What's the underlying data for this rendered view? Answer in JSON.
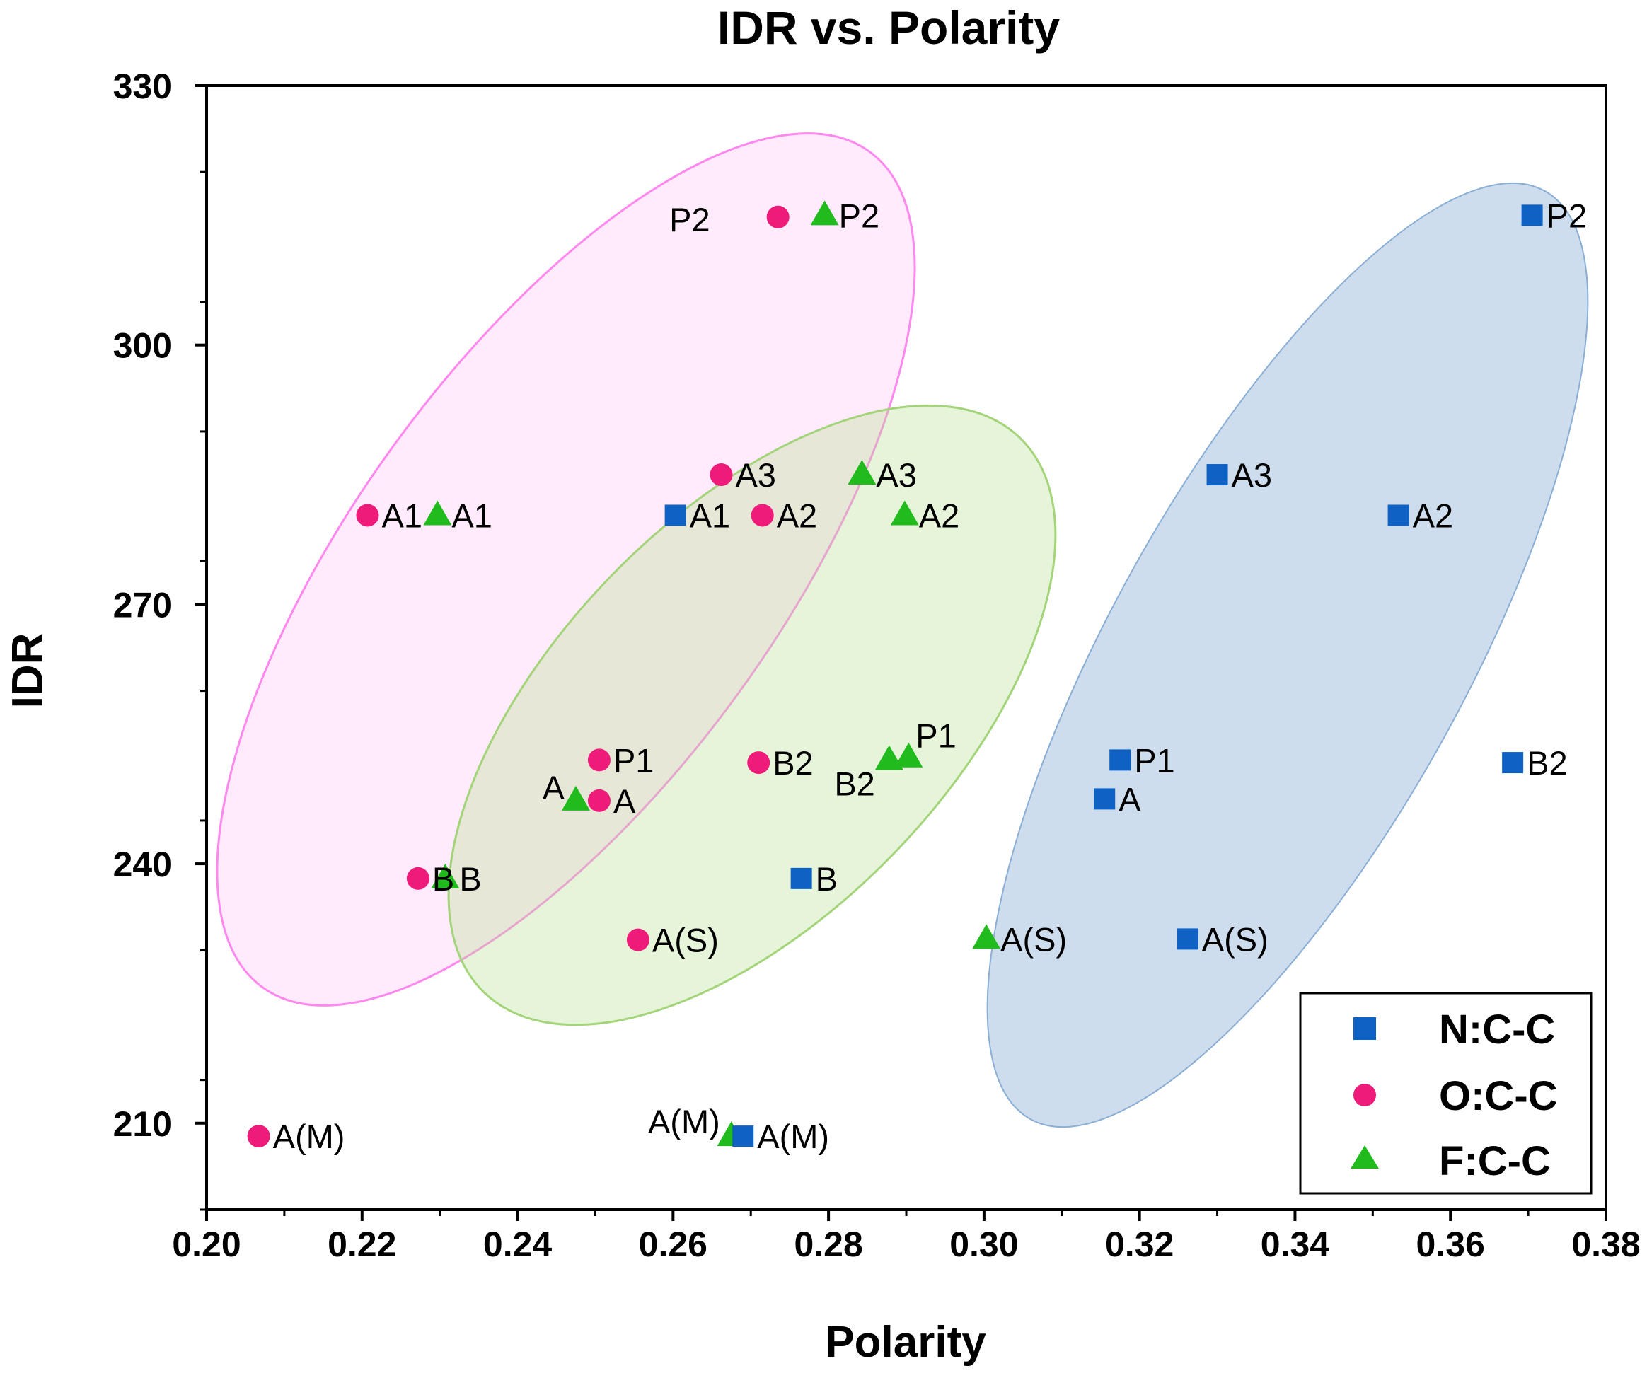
{
  "chart_data": {
    "type": "scatter",
    "title": "IDR vs. Polarity",
    "xlabel": "Polarity",
    "ylabel": "IDR",
    "xlim": [
      0.2,
      0.38
    ],
    "ylim": [
      200,
      330
    ],
    "x_ticks": [
      "0.20",
      "0.22",
      "0.24",
      "0.26",
      "0.28",
      "0.30",
      "0.32",
      "0.34",
      "0.36",
      "0.38"
    ],
    "y_ticks": [
      "210",
      "240",
      "270",
      "300",
      "330"
    ],
    "legend_position": "bottom-right",
    "grid": false,
    "series": [
      {
        "name": "N:C-C",
        "marker": "square",
        "color": "#0f62c4",
        "points": [
          {
            "x": 0.3705,
            "y": 315.0,
            "label": "P2"
          },
          {
            "x": 0.33,
            "y": 285.0,
            "label": "A3"
          },
          {
            "x": 0.3533,
            "y": 280.3,
            "label": "A2"
          },
          {
            "x": 0.2603,
            "y": 280.3,
            "label": "A1"
          },
          {
            "x": 0.3175,
            "y": 252.0,
            "label": "P1"
          },
          {
            "x": 0.368,
            "y": 251.7,
            "label": "B2"
          },
          {
            "x": 0.3155,
            "y": 247.5,
            "label": "A"
          },
          {
            "x": 0.2765,
            "y": 238.3,
            "label": "B"
          },
          {
            "x": 0.3262,
            "y": 231.3,
            "label": "A(S)"
          },
          {
            "x": 0.269,
            "y": 208.5,
            "label": "A(M)"
          }
        ]
      },
      {
        "name": "O:C-C",
        "marker": "circle",
        "color": "#ee1b7a",
        "points": [
          {
            "x": 0.2735,
            "y": 314.8,
            "label": "P2"
          },
          {
            "x": 0.2662,
            "y": 285.0,
            "label": "A3"
          },
          {
            "x": 0.2715,
            "y": 280.3,
            "label": "A2"
          },
          {
            "x": 0.2207,
            "y": 280.3,
            "label": "A1"
          },
          {
            "x": 0.2505,
            "y": 252.0,
            "label": "P1"
          },
          {
            "x": 0.271,
            "y": 251.7,
            "label": "B2"
          },
          {
            "x": 0.2505,
            "y": 247.3,
            "label": "A"
          },
          {
            "x": 0.2272,
            "y": 238.3,
            "label": "B"
          },
          {
            "x": 0.2555,
            "y": 231.2,
            "label": "A(S)"
          },
          {
            "x": 0.2067,
            "y": 208.5,
            "label": "A(M)"
          }
        ]
      },
      {
        "name": "F:C-C",
        "marker": "triangle",
        "color": "#22bb1e",
        "points": [
          {
            "x": 0.2795,
            "y": 315.0,
            "label": "P2"
          },
          {
            "x": 0.2843,
            "y": 285.0,
            "label": "A3"
          },
          {
            "x": 0.2898,
            "y": 280.3,
            "label": "A2"
          },
          {
            "x": 0.2297,
            "y": 280.3,
            "label": "A1"
          },
          {
            "x": 0.2903,
            "y": 252.3,
            "label": "P1"
          },
          {
            "x": 0.2878,
            "y": 252.0,
            "label": "B2"
          },
          {
            "x": 0.2475,
            "y": 247.3,
            "label": "A"
          },
          {
            "x": 0.2307,
            "y": 238.3,
            "label": "B"
          },
          {
            "x": 0.3003,
            "y": 231.3,
            "label": "A(S)"
          },
          {
            "x": 0.2675,
            "y": 208.5,
            "label": "A(M)"
          }
        ]
      }
    ],
    "ellipses": [
      {
        "name": "O:C-C",
        "fill": "#ff99ee",
        "stroke": "#ff88ee"
      },
      {
        "name": "F:C-C",
        "fill": "#b4e08c",
        "stroke": "#a4d47a"
      },
      {
        "name": "N:C-C",
        "fill": "#8aaed4",
        "stroke": "#8aaed4"
      }
    ]
  }
}
